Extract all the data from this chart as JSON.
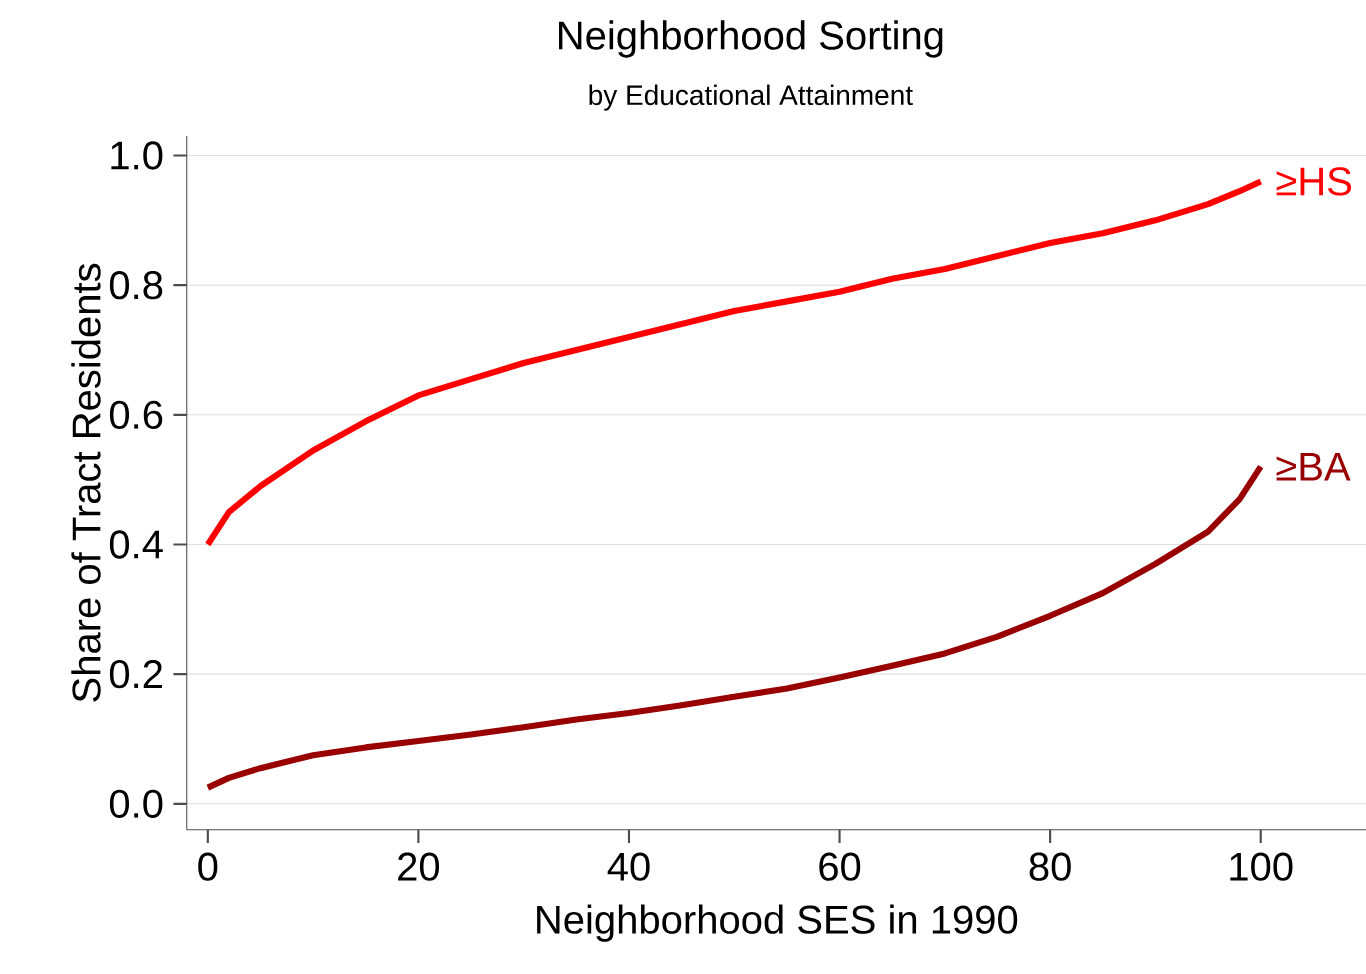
{
  "chart_data": {
    "type": "line",
    "title": "Neighborhood Sorting",
    "subtitle": "by Educational Attainment",
    "xlabel": "Neighborhood SES in 1990",
    "ylabel": "Share of Tract Residents",
    "x": [
      0,
      2,
      5,
      10,
      15,
      20,
      25,
      30,
      35,
      40,
      45,
      50,
      55,
      60,
      65,
      70,
      75,
      80,
      85,
      90,
      95,
      98,
      100
    ],
    "series": [
      {
        "name": "≥HS",
        "color": "#ff0000",
        "values": [
          0.4,
          0.45,
          0.49,
          0.545,
          0.59,
          0.63,
          0.655,
          0.68,
          0.7,
          0.72,
          0.74,
          0.76,
          0.775,
          0.79,
          0.81,
          0.825,
          0.845,
          0.865,
          0.88,
          0.9,
          0.925,
          0.945,
          0.96
        ]
      },
      {
        "name": "≥BA",
        "color": "#990000",
        "values": [
          0.025,
          0.04,
          0.055,
          0.075,
          0.087,
          0.097,
          0.107,
          0.118,
          0.13,
          0.14,
          0.152,
          0.165,
          0.178,
          0.195,
          0.213,
          0.232,
          0.258,
          0.29,
          0.325,
          0.37,
          0.42,
          0.47,
          0.52
        ]
      }
    ],
    "xlim": [
      -2,
      110
    ],
    "ylim": [
      -0.04,
      1.03
    ],
    "xticks": [
      0,
      20,
      40,
      60,
      80,
      100
    ],
    "yticks": [
      {
        "value": 0,
        "label": "0.0"
      },
      {
        "value": 0.2,
        "label": "0.2"
      },
      {
        "value": 0.4,
        "label": "0.4"
      },
      {
        "value": 0.6,
        "label": "0.6"
      },
      {
        "value": 0.8,
        "label": "0.8"
      },
      {
        "value": 1.0,
        "label": "1.0"
      }
    ],
    "grid": "y",
    "line_style": "solid"
  }
}
